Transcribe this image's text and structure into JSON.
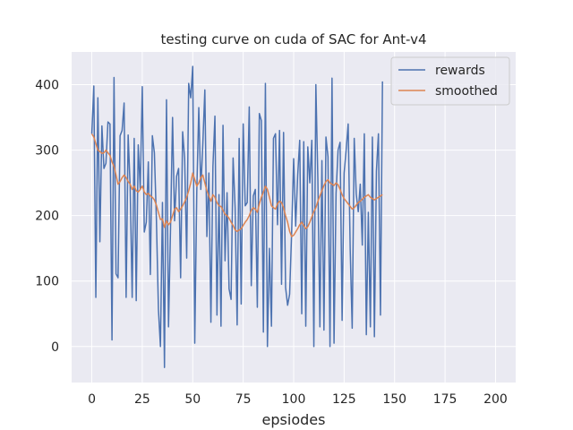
{
  "chart_data": {
    "type": "line",
    "title": "testing curve on cuda of SAC for Ant-v4",
    "xlabel": "epsiodes",
    "ylabel": "",
    "xlim": [
      -10,
      210
    ],
    "ylim": [
      -55,
      450
    ],
    "xticks": [
      0,
      25,
      50,
      75,
      100,
      125,
      150,
      175,
      200
    ],
    "yticks": [
      0,
      100,
      200,
      300,
      400
    ],
    "grid": true,
    "legend": "top-right",
    "series": [
      {
        "name": "rewards",
        "color": "#4c72b0",
        "x_start": 0,
        "values": [
          325,
          398,
          75,
          380,
          160,
          337,
          272,
          280,
          343,
          340,
          10,
          411,
          111,
          105,
          322,
          330,
          372,
          75,
          323,
          244,
          75,
          318,
          70,
          308,
          240,
          397,
          175,
          190,
          282,
          110,
          322,
          296,
          194,
          57,
          0,
          220,
          -32,
          377,
          30,
          180,
          350,
          192,
          260,
          272,
          105,
          328,
          287,
          135,
          402,
          380,
          428,
          5,
          236,
          365,
          240,
          310,
          392,
          168,
          265,
          37,
          275,
          352,
          48,
          232,
          31,
          338,
          131,
          235,
          88,
          72,
          288,
          212,
          33,
          318,
          65,
          340,
          215,
          220,
          366,
          93,
          230,
          240,
          60,
          356,
          345,
          22,
          402,
          0,
          150,
          31,
          318,
          325,
          186,
          330,
          95,
          327,
          90,
          63,
          80,
          175,
          287,
          184,
          262,
          315,
          50,
          313,
          31,
          305,
          250,
          315,
          0,
          400,
          254,
          30,
          284,
          25,
          320,
          290,
          0,
          410,
          5,
          234,
          300,
          312,
          40,
          265,
          300,
          340,
          150,
          28,
          318,
          233,
          206,
          248,
          155,
          325,
          18,
          205,
          30,
          320,
          15,
          268,
          325,
          48,
          405
        ]
      },
      {
        "name": "smoothed",
        "color": "#dd8452",
        "x_start": 0,
        "values": [
          325,
          320,
          310,
          300,
          298,
          295,
          296,
          300,
          296,
          292,
          282,
          275,
          262,
          248,
          252,
          258,
          262,
          258,
          252,
          248,
          240,
          245,
          238,
          236,
          240,
          245,
          236,
          232,
          234,
          230,
          228,
          224,
          216,
          205,
          194,
          195,
          182,
          192,
          186,
          190,
          200,
          210,
          212,
          206,
          210,
          215,
          221,
          228,
          238,
          250,
          265,
          255,
          245,
          250,
          258,
          262,
          250,
          238,
          230,
          222,
          232,
          228,
          220,
          215,
          214,
          208,
          202,
          200,
          196,
          190,
          185,
          178,
          176,
          178,
          180,
          185,
          190,
          194,
          200,
          208,
          212,
          210,
          205,
          218,
          228,
          236,
          245,
          240,
          228,
          215,
          212,
          210,
          218,
          222,
          220,
          212,
          200,
          190,
          176,
          168,
          170,
          175,
          180,
          186,
          190,
          185,
          180,
          183,
          190,
          198,
          206,
          212,
          222,
          230,
          238,
          246,
          252,
          255,
          250,
          248,
          246,
          250,
          247,
          240,
          232,
          226,
          222,
          218,
          214,
          210,
          212,
          216,
          220,
          222,
          225,
          228,
          230,
          232,
          228,
          226,
          224,
          226,
          228,
          230,
          232
        ]
      }
    ]
  }
}
